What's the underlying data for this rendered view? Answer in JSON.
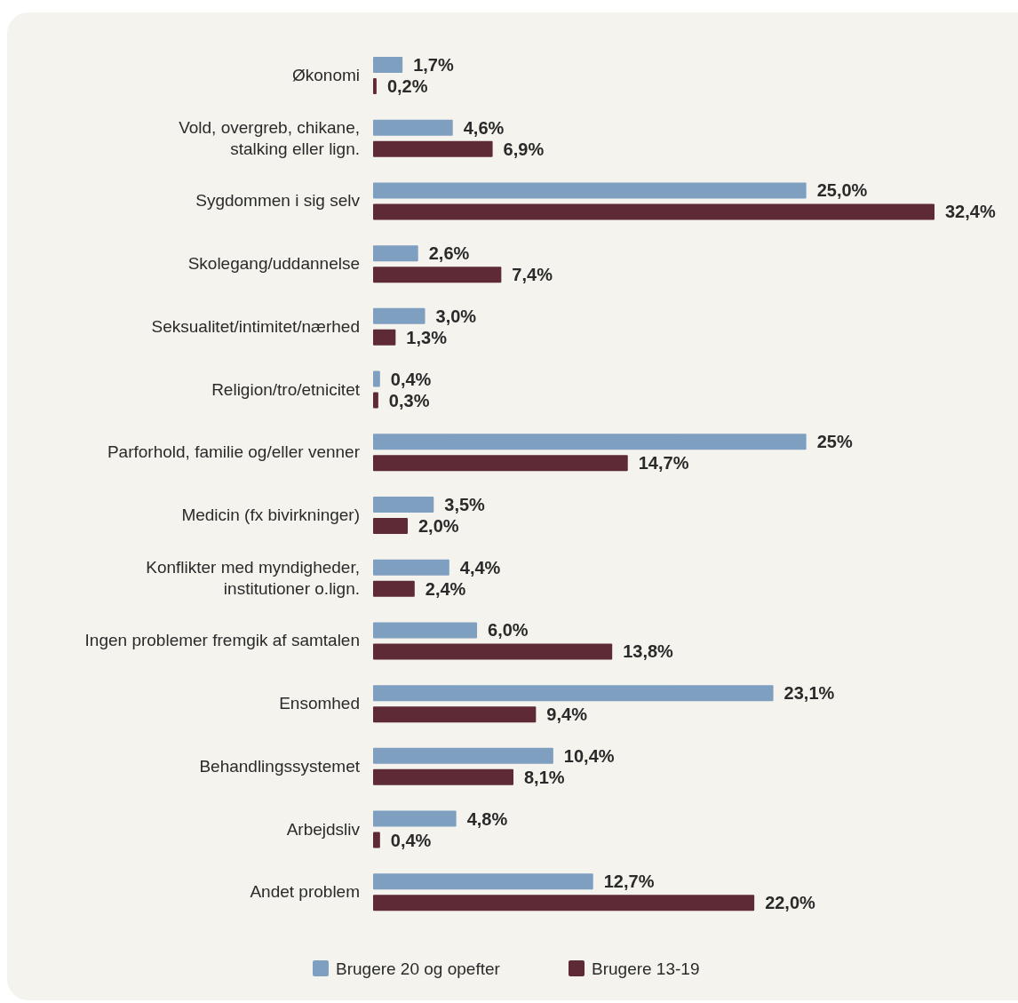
{
  "chart_data": {
    "type": "bar",
    "orientation": "horizontal",
    "categories": [
      "Økonomi",
      "Vold, overgreb, chikane, stalking eller lign.",
      "Sygdommen i sig selv",
      "Skolegang/uddannelse",
      "Seksualitet/intimitet/nærhed",
      "Religion/tro/etnicitet",
      "Parforhold, familie og/eller venner",
      "Medicin (fx bivirkninger)",
      "Konflikter med myndigheder, institutioner o.lign.",
      "Ingen problemer fremgik af samtalen",
      "Ensomhed",
      "Behandlingssystemet",
      "Arbejdsliv",
      "Andet problem"
    ],
    "series": [
      {
        "name": "Brugere 20 og opefter",
        "color": "#7f9fc0",
        "values": [
          1.7,
          4.6,
          25.0,
          2.6,
          3.0,
          0.4,
          25,
          3.5,
          4.4,
          6.0,
          23.1,
          10.4,
          4.8,
          12.7
        ],
        "value_labels": [
          "1,7%",
          "4,6%",
          "25,0%",
          "2,6%",
          "3,0%",
          "0,4%",
          "25%",
          "3,5%",
          "4,4%",
          "6,0%",
          "23,1%",
          "10,4%",
          "4,8%",
          "12,7%"
        ]
      },
      {
        "name": "Brugere 13-19",
        "color": "#5e2a35",
        "values": [
          0.2,
          6.9,
          32.4,
          7.4,
          1.3,
          0.3,
          14.7,
          2.0,
          2.4,
          13.8,
          9.4,
          8.1,
          0.4,
          22.0
        ],
        "value_labels": [
          "0,2%",
          "6,9%",
          "32,4%",
          "7,4%",
          "1,3%",
          "0,3%",
          "14,7%",
          "2,0%",
          "2,4%",
          "13,8%",
          "9,4%",
          "8,1%",
          "0,4%",
          "22,0%"
        ]
      }
    ],
    "legend": "bottom"
  }
}
